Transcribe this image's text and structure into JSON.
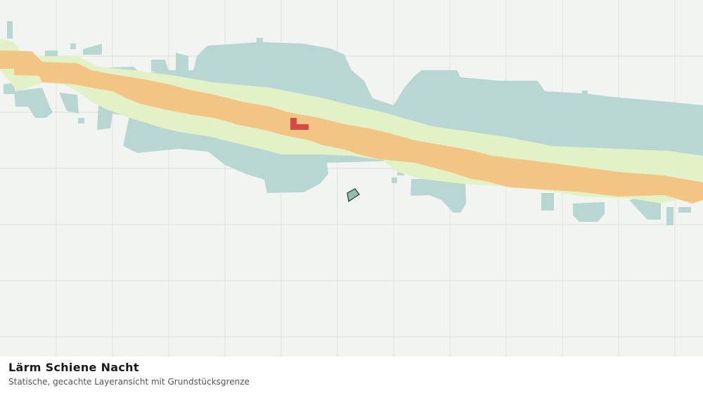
{
  "header": {
    "title": "Lärm Schiene Nacht",
    "subtitle": "Statische, gecachte Layeransicht mit Grundstücksgrenze"
  }
}
